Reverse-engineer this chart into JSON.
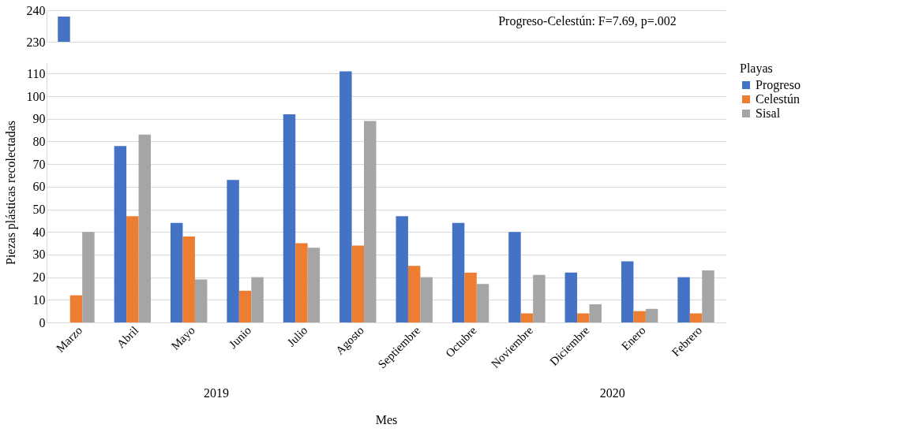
{
  "chart_data": [
    {
      "type": "bar",
      "series": [
        {
          "color": "#4472c4",
          "values": [
            238,
            null,
            null,
            null,
            null,
            null,
            null,
            null,
            null,
            null,
            null,
            null
          ]
        },
        {
          "color": "#ed7d31",
          "values": [
            null,
            null,
            null,
            null,
            null,
            null,
            null,
            null,
            null,
            null,
            null,
            null
          ]
        },
        {
          "color": "#a5a5a5",
          "values": [
            null,
            null,
            null,
            null,
            null,
            null,
            null,
            null,
            null,
            null,
            null,
            null
          ]
        }
      ],
      "ylim": [
        230,
        240
      ],
      "yticks": [
        230,
        240
      ],
      "grid": "y",
      "tick_labels": "y",
      "annotations": [
        "Progreso-Celestún: F=7.69, p=.002"
      ]
    },
    {
      "type": "bar",
      "categories": [
        "Marzo",
        "Abril",
        "Mayo",
        "Junio",
        "Julio",
        "Agosto",
        "Septiembre",
        "Octubre",
        "Noviembre",
        "Diciembre",
        "Enero",
        "Febrero"
      ],
      "series": [
        {
          "name": "Progreso",
          "color": "#4472c4",
          "values": [
            null,
            78,
            44,
            63,
            92,
            111,
            47,
            44,
            40,
            22,
            27,
            20
          ]
        },
        {
          "name": "Celestún",
          "color": "#ed7d31",
          "values": [
            12,
            47,
            38,
            14,
            35,
            34,
            25,
            22,
            4,
            4,
            5,
            4
          ]
        },
        {
          "name": "Sisal",
          "color": "#a5a5a5",
          "values": [
            40,
            83,
            19,
            20,
            33,
            89,
            20,
            17,
            21,
            8,
            6,
            23
          ]
        }
      ],
      "xlabel": "Mes",
      "ylabel": "Piezas plásticas recolectadas",
      "legend_title": "Playas",
      "ylim": [
        0,
        115
      ],
      "yticks": [
        0,
        10,
        20,
        30,
        40,
        50,
        60,
        70,
        80,
        90,
        100,
        110
      ],
      "grid": "y",
      "legend": "right",
      "annotations": [
        "2019",
        "2020"
      ]
    }
  ]
}
